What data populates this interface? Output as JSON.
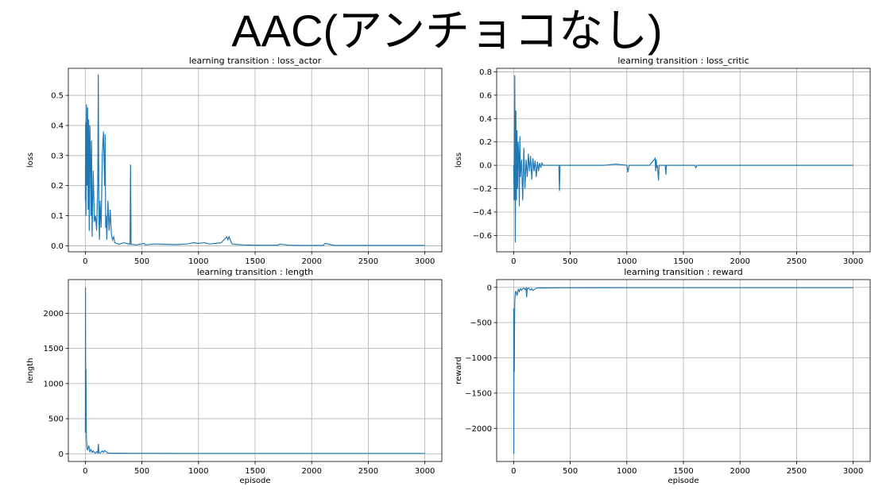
{
  "page_title": "AAC(アンチョコなし)",
  "chart_data": [
    {
      "id": "loss_actor",
      "type": "line",
      "title": "learning transition : loss_actor",
      "xlabel": "",
      "ylabel": "loss",
      "xlim": [
        -150,
        3150
      ],
      "ylim": [
        -0.02,
        0.59
      ],
      "xticks": [
        0,
        500,
        1000,
        1500,
        2000,
        2500,
        3000
      ],
      "xtick_labels": [
        "0",
        "500",
        "1000",
        "1500",
        "2000",
        "2500",
        "3000"
      ],
      "yticks": [
        0.0,
        0.1,
        0.2,
        0.3,
        0.4,
        0.5
      ],
      "ytick_labels": [
        "0.0",
        "0.1",
        "0.2",
        "0.3",
        "0.4",
        "0.5"
      ],
      "grid": true,
      "color": "#1f77b4",
      "series": [
        {
          "x": [
            0,
            3,
            6,
            10,
            15,
            20,
            25,
            30,
            35,
            40,
            45,
            50,
            55,
            60,
            70,
            80,
            90,
            100,
            110,
            115,
            120,
            125,
            130,
            140,
            150,
            160,
            170,
            175,
            180,
            185,
            190,
            200,
            210,
            220,
            230,
            240,
            250,
            260,
            300,
            340,
            395,
            400,
            405,
            450,
            520,
            530,
            600,
            700,
            800,
            900,
            950,
            1000,
            1050,
            1100,
            1150,
            1200,
            1250,
            1260,
            1270,
            1280,
            1290,
            1300,
            1350,
            1400,
            1500,
            1600,
            1700,
            1720,
            1800,
            1900,
            2000,
            2100,
            2120,
            2200,
            2500,
            3000
          ],
          "y": [
            0.15,
            0.41,
            0.1,
            0.47,
            0.2,
            0.46,
            0.12,
            0.42,
            0.05,
            0.4,
            0.3,
            0.1,
            0.35,
            0.03,
            0.25,
            0.08,
            0.1,
            0.05,
            0.2,
            0.57,
            0.08,
            0.02,
            0.15,
            0.06,
            0.3,
            0.38,
            0.2,
            0.37,
            0.06,
            0.1,
            0.02,
            0.15,
            0.05,
            0.12,
            0.04,
            0.02,
            0.03,
            0.01,
            0.005,
            0.01,
            0.005,
            0.27,
            0.005,
            0.003,
            0.008,
            0.003,
            0.006,
            0.005,
            0.004,
            0.006,
            0.01,
            0.008,
            0.01,
            0.006,
            0.008,
            0.01,
            0.03,
            0.02,
            0.03,
            0.02,
            0.01,
            0.006,
            0.004,
            0.003,
            0.002,
            0.002,
            0.002,
            0.006,
            0.002,
            0.001,
            0.001,
            0.001,
            0.008,
            0.001,
            0.001,
            0.001
          ]
        }
      ]
    },
    {
      "id": "loss_critic",
      "type": "line",
      "title": "learning transition : loss_critic",
      "xlabel": "",
      "ylabel": "loss",
      "xlim": [
        -150,
        3150
      ],
      "ylim": [
        -0.74,
        0.83
      ],
      "xticks": [
        0,
        500,
        1000,
        1500,
        2000,
        2500,
        3000
      ],
      "xtick_labels": [
        "0",
        "500",
        "1000",
        "1500",
        "2000",
        "2500",
        "3000"
      ],
      "yticks": [
        -0.6,
        -0.4,
        -0.2,
        0.0,
        0.2,
        0.4,
        0.6,
        0.8
      ],
      "ytick_labels": [
        "−0.6",
        "−0.4",
        "−0.2",
        "0.0",
        "0.2",
        "0.4",
        "0.6",
        "0.8"
      ],
      "grid": true,
      "color": "#1f77b4",
      "series": [
        {
          "x": [
            0,
            5,
            10,
            15,
            20,
            25,
            30,
            35,
            40,
            45,
            50,
            55,
            60,
            70,
            80,
            90,
            100,
            110,
            120,
            130,
            140,
            150,
            160,
            170,
            180,
            190,
            200,
            210,
            220,
            230,
            240,
            250,
            260,
            300,
            400,
            405,
            410,
            500,
            600,
            700,
            800,
            900,
            1000,
            1010,
            1020,
            1100,
            1200,
            1250,
            1255,
            1260,
            1265,
            1270,
            1280,
            1285,
            1300,
            1340,
            1345,
            1350,
            1400,
            1600,
            1610,
            1620,
            1800,
            2000,
            2500,
            3000
          ],
          "y": [
            0.0,
            -0.3,
            0.77,
            -0.66,
            0.47,
            -0.3,
            0.3,
            -0.2,
            0.2,
            0.1,
            -0.35,
            0.25,
            -0.1,
            0.05,
            -0.3,
            0.15,
            -0.2,
            0.05,
            -0.1,
            0.1,
            -0.05,
            0.08,
            -0.12,
            0.06,
            -0.05,
            0.04,
            -0.1,
            0.03,
            -0.05,
            0.02,
            -0.02,
            0.02,
            0.0,
            0.0,
            0.0,
            -0.22,
            0.0,
            0.0,
            0.0,
            0.0,
            0.0,
            0.01,
            0.0,
            -0.06,
            0.0,
            0.0,
            0.0,
            0.06,
            -0.05,
            0.05,
            -0.02,
            0.0,
            -0.13,
            0.0,
            0.0,
            0.0,
            -0.08,
            0.0,
            0.0,
            0.0,
            -0.02,
            0.0,
            0.0,
            0.0,
            0.0,
            0.0
          ]
        }
      ]
    },
    {
      "id": "length",
      "type": "line",
      "title": "learning transition : length",
      "xlabel": "episode",
      "ylabel": "length",
      "xlim": [
        -150,
        3150
      ],
      "ylim": [
        -110,
        2480
      ],
      "xticks": [
        0,
        500,
        1000,
        1500,
        2000,
        2500,
        3000
      ],
      "xtick_labels": [
        "0",
        "500",
        "1000",
        "1500",
        "2000",
        "2500",
        "3000"
      ],
      "yticks": [
        0,
        500,
        1000,
        1500,
        2000
      ],
      "ytick_labels": [
        "0",
        "500",
        "1000",
        "1500",
        "2000"
      ],
      "grid": true,
      "color": "#1f77b4",
      "series": [
        {
          "x": [
            0,
            2,
            4,
            6,
            8,
            10,
            15,
            20,
            30,
            40,
            50,
            60,
            70,
            80,
            90,
            100,
            110,
            115,
            120,
            130,
            150,
            160,
            170,
            200,
            250,
            300,
            400,
            1000,
            3000
          ],
          "y": [
            300,
            2370,
            500,
            1200,
            550,
            200,
            80,
            50,
            120,
            30,
            60,
            20,
            40,
            15,
            10,
            30,
            12,
            140,
            15,
            10,
            40,
            20,
            45,
            10,
            8,
            8,
            6,
            5,
            5
          ]
        }
      ]
    },
    {
      "id": "reward",
      "type": "line",
      "title": "learning transition : reward",
      "xlabel": "episode",
      "ylabel": "reward",
      "xlim": [
        -150,
        3150
      ],
      "ylim": [
        -2470,
        110
      ],
      "xticks": [
        0,
        500,
        1000,
        1500,
        2000,
        2500,
        3000
      ],
      "xtick_labels": [
        "0",
        "500",
        "1000",
        "1500",
        "2000",
        "2500",
        "3000"
      ],
      "yticks": [
        0,
        -500,
        -1000,
        -1500,
        -2000
      ],
      "ytick_labels": [
        "0",
        "−500",
        "−1000",
        "−1500",
        "−2000"
      ],
      "grid": true,
      "color": "#1f77b4",
      "series": [
        {
          "x": [
            0,
            2,
            4,
            6,
            8,
            10,
            15,
            20,
            30,
            40,
            50,
            60,
            70,
            80,
            90,
            100,
            110,
            115,
            120,
            130,
            150,
            160,
            170,
            200,
            250,
            300,
            400,
            1000,
            3000
          ],
          "y": [
            -300,
            -2360,
            -500,
            -1200,
            -550,
            -200,
            -80,
            -50,
            -120,
            -30,
            -60,
            -20,
            -40,
            -15,
            -10,
            -30,
            -12,
            -140,
            -15,
            -10,
            -40,
            -20,
            -45,
            -10,
            -8,
            -8,
            -6,
            -5,
            -5
          ]
        }
      ]
    }
  ]
}
